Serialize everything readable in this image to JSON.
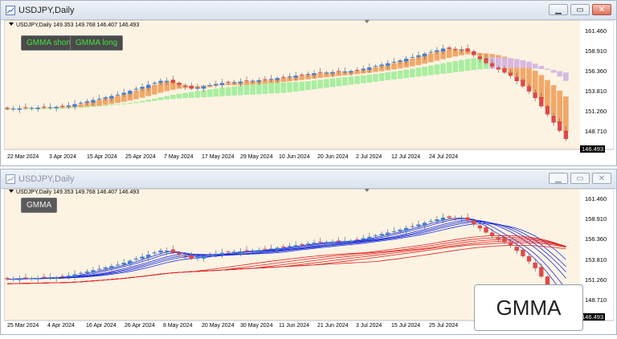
{
  "windows": [
    {
      "title": "USDJPY,Daily",
      "info": "USDJPY,Daily  149.353 149.768 146.407 146.493",
      "buttons": [
        {
          "name": "GMMA short"
        },
        {
          "name": "GMMA long"
        }
      ],
      "price_labels": [
        "161.460",
        "158.910",
        "156.360",
        "153.810",
        "151.260",
        "148.710"
      ],
      "current_price": "146.493",
      "date_labels": [
        "22 Mar 2024",
        "3 Apr 2024",
        "15 Apr 2024",
        "25 Apr 2024",
        "7 May 2024",
        "17 May 2024",
        "29 May 2024",
        "10 Jun 2024",
        "20 Jun 2024",
        "2 Jul 2024",
        "12 Jul 2024",
        "24 Jul 2024"
      ]
    },
    {
      "title": "USDJPY,Daily",
      "info": "USDJPY,Daily  149.353 149.768 146.407 146.493",
      "buttons": [
        {
          "name": "GMMA"
        }
      ],
      "price_labels": [
        "161.460",
        "158.910",
        "156.360",
        "153.810",
        "151.260",
        "148.710"
      ],
      "current_price": "146.493",
      "date_labels": [
        "25 Mar 2024",
        "4 Apr 2024",
        "16 Apr 2024",
        "26 Apr 2024",
        "8 May 2024",
        "20 May 2024",
        "30 May 2024",
        "11 Jun 2024",
        "21 Jun 2024",
        "3 Jul 2024",
        "15 Jul 2024",
        "25 Jul 2024"
      ]
    }
  ],
  "window_controls": {
    "minimize": "▁",
    "restore": "▭",
    "close": "✕"
  },
  "overlay_badge": "GMMA",
  "colors": {
    "chart_bg": "#fdf3e3",
    "bull_candle": "#3f7fd8",
    "bear_candle": "#e04848",
    "short_band": "#f2a868",
    "long_band_up": "#a8eea0",
    "long_band_down": "#d8b8e0",
    "short_lines": "#1a2fe0",
    "long_lines": "#e02020"
  }
}
